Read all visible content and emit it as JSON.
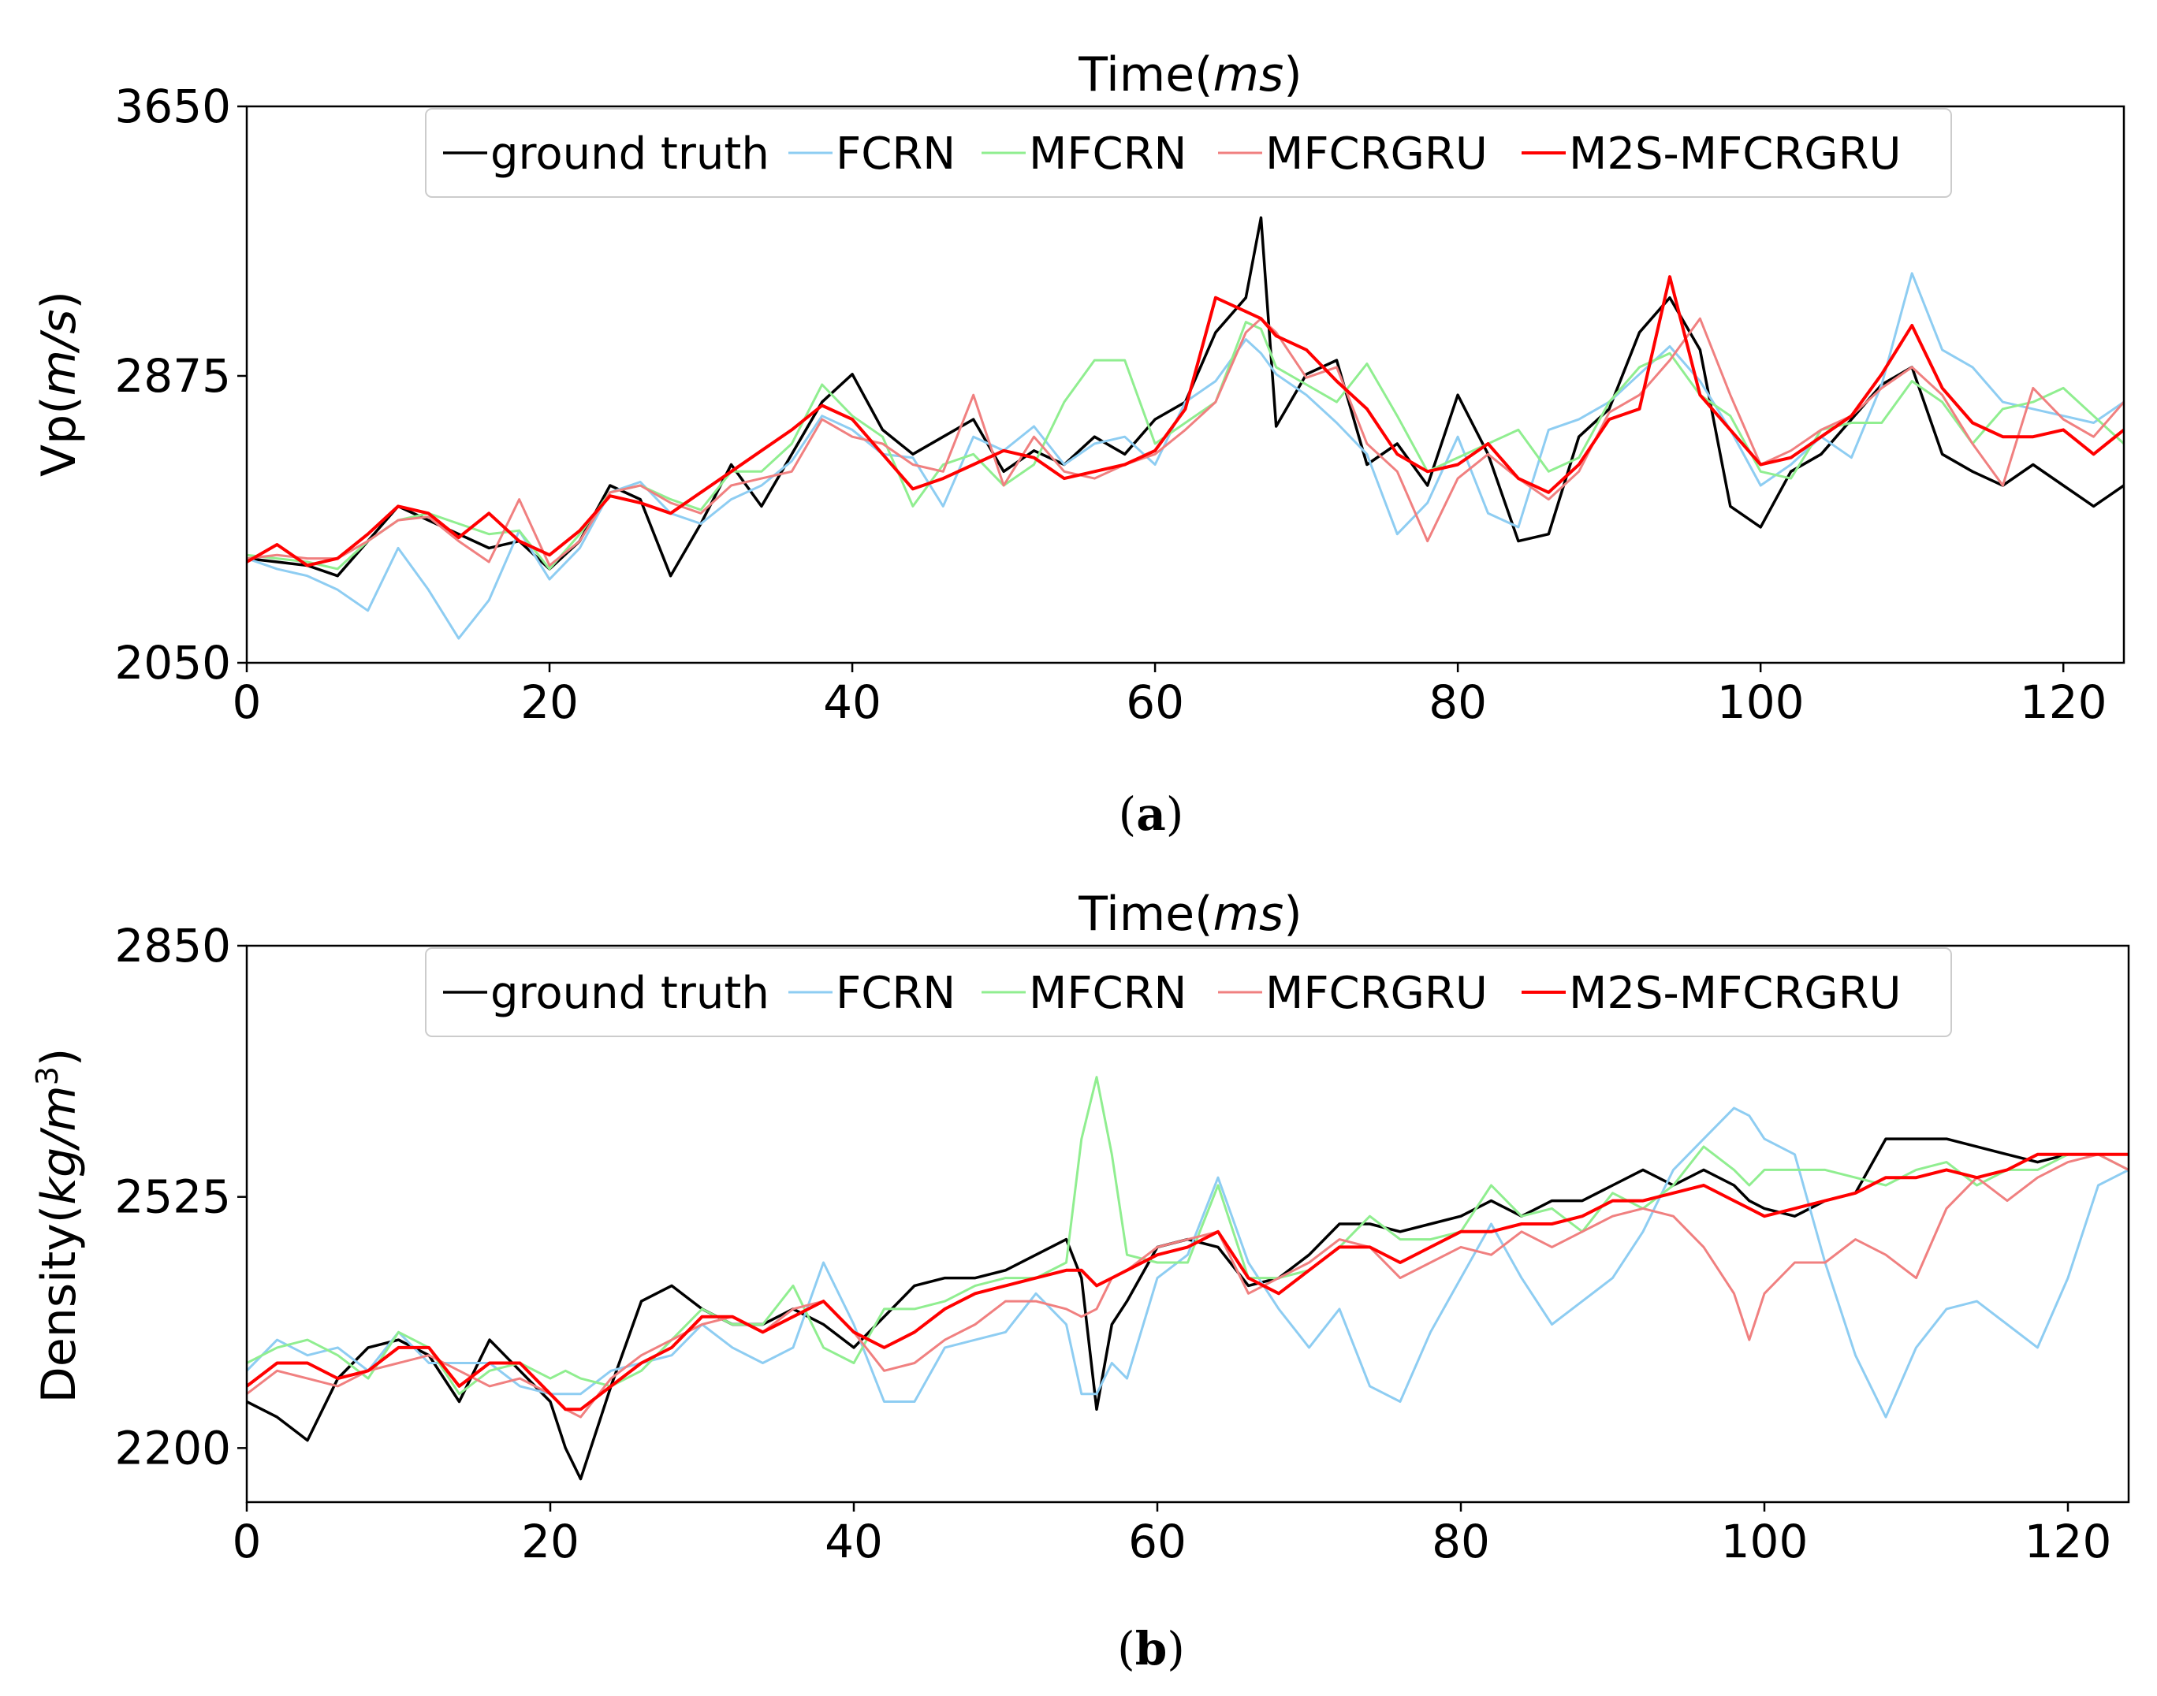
{
  "chart_data": [
    {
      "id": "a",
      "type": "line",
      "title_prefix": "Time(",
      "title_italic": "ms",
      "title_suffix": ")",
      "xlabel": "",
      "ylabel_prefix": "Vp(",
      "ylabel_italic": "m/s",
      "ylabel_suffix": ")",
      "ylabel_sup": "",
      "caption": "a",
      "xlim": [
        0,
        124
      ],
      "ylim": [
        2050,
        3650
      ],
      "xticks": [
        0,
        20,
        40,
        60,
        80,
        100,
        120
      ],
      "xtick_labels": [
        "0",
        "20",
        "40",
        "60",
        "80",
        "100",
        "120"
      ],
      "yticks": [
        2050,
        2875,
        3650
      ],
      "ytick_labels": [
        "2050",
        "2875",
        "3650"
      ],
      "legend": {
        "location": "top-center",
        "entries": [
          "ground truth",
          "FCRN",
          "MFCRN",
          "MFCRGRU",
          "M2S-MFCRGRU"
        ]
      },
      "x_points": [
        0,
        2,
        4,
        6,
        8,
        10,
        12,
        14,
        16,
        18,
        20,
        22,
        24,
        26,
        28,
        30,
        32,
        34,
        36,
        38,
        40,
        42,
        44,
        46,
        48,
        50,
        52,
        54,
        56,
        58,
        60,
        62,
        64,
        66,
        67,
        68,
        70,
        72,
        74,
        76,
        78,
        80,
        82,
        84,
        86,
        88,
        90,
        92,
        94,
        96,
        98,
        100,
        102,
        104,
        106,
        108,
        110,
        112,
        114,
        116,
        118,
        120,
        122,
        124
      ],
      "series": [
        {
          "name": "ground truth",
          "color": "#000000",
          "width": 3.5,
          "values": [
            2350,
            2340,
            2330,
            2300,
            2400,
            2500,
            2460,
            2420,
            2380,
            2400,
            2320,
            2400,
            2560,
            2520,
            2300,
            2450,
            2620,
            2500,
            2650,
            2800,
            2880,
            2720,
            2650,
            2700,
            2750,
            2600,
            2660,
            2620,
            2700,
            2650,
            2750,
            2800,
            3000,
            3100,
            3330,
            2730,
            2880,
            2920,
            2620,
            2680,
            2560,
            2820,
            2650,
            2400,
            2420,
            2700,
            2780,
            3000,
            3100,
            2950,
            2500,
            2440,
            2600,
            2650,
            2750,
            2850,
            2900,
            2650,
            2600,
            2560,
            2620,
            2560,
            2500,
            2560
          ]
        },
        {
          "name": "FCRN",
          "color": "#8ecdf2",
          "width": 3,
          "values": [
            2350,
            2320,
            2300,
            2260,
            2200,
            2380,
            2260,
            2120,
            2230,
            2430,
            2290,
            2380,
            2540,
            2570,
            2480,
            2450,
            2520,
            2560,
            2630,
            2760,
            2720,
            2650,
            2640,
            2500,
            2700,
            2660,
            2730,
            2620,
            2680,
            2700,
            2620,
            2800,
            2860,
            2980,
            2940,
            2880,
            2820,
            2740,
            2650,
            2420,
            2510,
            2700,
            2480,
            2440,
            2720,
            2750,
            2800,
            2880,
            2960,
            2860,
            2720,
            2560,
            2620,
            2700,
            2640,
            2850,
            3170,
            2950,
            2900,
            2800,
            2780,
            2760,
            2740,
            2800
          ]
        },
        {
          "name": "MFCRN",
          "color": "#90ee90",
          "width": 3,
          "values": [
            2360,
            2350,
            2340,
            2320,
            2400,
            2460,
            2480,
            2450,
            2420,
            2430,
            2320,
            2420,
            2540,
            2560,
            2520,
            2490,
            2600,
            2600,
            2680,
            2850,
            2760,
            2700,
            2500,
            2620,
            2650,
            2560,
            2620,
            2800,
            2920,
            2920,
            2680,
            2740,
            2800,
            3030,
            3010,
            2900,
            2850,
            2800,
            2910,
            2760,
            2600,
            2640,
            2680,
            2720,
            2600,
            2640,
            2800,
            2900,
            2940,
            2820,
            2760,
            2600,
            2580,
            2720,
            2740,
            2740,
            2860,
            2800,
            2680,
            2780,
            2800,
            2840,
            2760,
            2680
          ]
        },
        {
          "name": "MFCRGRU",
          "color": "#f08080",
          "width": 3,
          "values": [
            2350,
            2360,
            2350,
            2350,
            2400,
            2460,
            2470,
            2400,
            2340,
            2520,
            2330,
            2400,
            2540,
            2560,
            2510,
            2480,
            2560,
            2580,
            2600,
            2750,
            2700,
            2680,
            2620,
            2600,
            2820,
            2560,
            2700,
            2600,
            2580,
            2620,
            2650,
            2720,
            2800,
            3000,
            3040,
            3000,
            2870,
            2900,
            2680,
            2600,
            2400,
            2580,
            2650,
            2580,
            2520,
            2600,
            2770,
            2820,
            2920,
            3040,
            2820,
            2620,
            2660,
            2720,
            2760,
            2840,
            2900,
            2820,
            2680,
            2560,
            2840,
            2750,
            2700,
            2800
          ]
        },
        {
          "name": "M2S-MFCRGRU",
          "color": "#ff0000",
          "width": 4,
          "values": [
            2340,
            2390,
            2330,
            2350,
            2420,
            2500,
            2480,
            2410,
            2480,
            2400,
            2360,
            2430,
            2530,
            2510,
            2480,
            2540,
            2600,
            2660,
            2720,
            2790,
            2750,
            2650,
            2550,
            2580,
            2620,
            2660,
            2640,
            2580,
            2600,
            2620,
            2660,
            2780,
            3100,
            3060,
            3040,
            2990,
            2950,
            2860,
            2780,
            2650,
            2600,
            2620,
            2680,
            2580,
            2540,
            2620,
            2750,
            2780,
            3160,
            2820,
            2720,
            2620,
            2640,
            2700,
            2760,
            2880,
            3020,
            2840,
            2740,
            2700,
            2700,
            2720,
            2650,
            2720
          ]
        }
      ]
    },
    {
      "id": "b",
      "type": "line",
      "title_prefix": "Time(",
      "title_italic": "ms",
      "title_suffix": ")",
      "xlabel": "",
      "ylabel_prefix": "Density(",
      "ylabel_italic": "kg/m",
      "ylabel_suffix": ")",
      "ylabel_sup": "3",
      "caption": "b",
      "xlim": [
        0,
        124
      ],
      "ylim": [
        2130,
        2850
      ],
      "xticks": [
        0,
        20,
        40,
        60,
        80,
        100,
        120
      ],
      "xtick_labels": [
        "0",
        "20",
        "40",
        "60",
        "80",
        "100",
        "120"
      ],
      "yticks": [
        2200,
        2525,
        2850
      ],
      "ytick_labels": [
        "2200",
        "2525",
        "2850"
      ],
      "legend": {
        "location": "top-center",
        "entries": [
          "ground truth",
          "FCRN",
          "MFCRN",
          "MFCRGRU",
          "M2S-MFCRGRU"
        ]
      },
      "x_points": [
        0,
        2,
        4,
        6,
        8,
        10,
        12,
        14,
        16,
        18,
        20,
        21,
        22,
        24,
        26,
        28,
        30,
        32,
        34,
        36,
        38,
        40,
        42,
        44,
        46,
        48,
        50,
        52,
        54,
        55,
        56,
        57,
        58,
        60,
        62,
        64,
        66,
        68,
        70,
        72,
        74,
        76,
        78,
        80,
        82,
        84,
        86,
        88,
        90,
        92,
        94,
        96,
        98,
        99,
        100,
        102,
        104,
        106,
        108,
        110,
        112,
        114,
        116,
        118,
        120,
        122,
        124
      ],
      "series": [
        {
          "name": "ground truth",
          "color": "#000000",
          "width": 3.5,
          "values": [
            2260,
            2240,
            2210,
            2290,
            2330,
            2340,
            2320,
            2260,
            2340,
            2300,
            2260,
            2200,
            2160,
            2280,
            2390,
            2410,
            2380,
            2360,
            2360,
            2380,
            2360,
            2330,
            2370,
            2410,
            2420,
            2420,
            2430,
            2450,
            2470,
            2420,
            2250,
            2360,
            2390,
            2460,
            2470,
            2460,
            2410,
            2420,
            2450,
            2490,
            2490,
            2480,
            2490,
            2500,
            2520,
            2500,
            2520,
            2520,
            2540,
            2560,
            2540,
            2560,
            2540,
            2520,
            2510,
            2500,
            2520,
            2530,
            2600,
            2600,
            2600,
            2590,
            2580,
            2570,
            2580,
            2580,
            2580
          ]
        },
        {
          "name": "FCRN",
          "color": "#8ecdf2",
          "width": 3,
          "values": [
            2300,
            2340,
            2320,
            2330,
            2300,
            2350,
            2310,
            2310,
            2310,
            2280,
            2270,
            2270,
            2270,
            2300,
            2310,
            2320,
            2360,
            2330,
            2310,
            2330,
            2440,
            2360,
            2260,
            2260,
            2330,
            2340,
            2350,
            2400,
            2360,
            2270,
            2270,
            2310,
            2290,
            2420,
            2450,
            2550,
            2440,
            2380,
            2330,
            2380,
            2280,
            2260,
            2350,
            2420,
            2490,
            2420,
            2360,
            2390,
            2420,
            2480,
            2560,
            2600,
            2640,
            2630,
            2600,
            2580,
            2440,
            2320,
            2240,
            2330,
            2380,
            2390,
            2360,
            2330,
            2420,
            2540,
            2560
          ]
        },
        {
          "name": "MFCRN",
          "color": "#90ee90",
          "width": 3,
          "values": [
            2310,
            2330,
            2340,
            2320,
            2290,
            2350,
            2330,
            2270,
            2300,
            2310,
            2290,
            2300,
            2290,
            2280,
            2300,
            2340,
            2380,
            2360,
            2360,
            2410,
            2330,
            2310,
            2380,
            2380,
            2390,
            2410,
            2420,
            2420,
            2440,
            2600,
            2680,
            2580,
            2450,
            2440,
            2440,
            2540,
            2420,
            2420,
            2430,
            2460,
            2500,
            2470,
            2470,
            2480,
            2540,
            2500,
            2510,
            2480,
            2530,
            2510,
            2540,
            2590,
            2560,
            2540,
            2560,
            2560,
            2560,
            2550,
            2540,
            2560,
            2570,
            2540,
            2560,
            2560,
            2580,
            2580,
            2560
          ]
        },
        {
          "name": "MFCRGRU",
          "color": "#f08080",
          "width": 3,
          "values": [
            2270,
            2300,
            2290,
            2280,
            2300,
            2310,
            2320,
            2300,
            2280,
            2290,
            2270,
            2250,
            2240,
            2290,
            2320,
            2340,
            2360,
            2370,
            2350,
            2380,
            2390,
            2350,
            2300,
            2310,
            2340,
            2360,
            2390,
            2390,
            2380,
            2370,
            2380,
            2420,
            2430,
            2460,
            2470,
            2480,
            2400,
            2420,
            2440,
            2470,
            2460,
            2420,
            2440,
            2460,
            2450,
            2480,
            2460,
            2480,
            2500,
            2510,
            2500,
            2460,
            2400,
            2340,
            2400,
            2440,
            2440,
            2470,
            2450,
            2420,
            2510,
            2550,
            2520,
            2550,
            2570,
            2580,
            2560
          ]
        },
        {
          "name": "M2S-MFCRGRU",
          "color": "#ff0000",
          "width": 4,
          "values": [
            2280,
            2310,
            2310,
            2290,
            2300,
            2330,
            2330,
            2280,
            2310,
            2310,
            2270,
            2250,
            2250,
            2280,
            2310,
            2330,
            2370,
            2370,
            2350,
            2370,
            2390,
            2350,
            2330,
            2350,
            2380,
            2400,
            2410,
            2420,
            2430,
            2430,
            2410,
            2420,
            2430,
            2450,
            2460,
            2480,
            2420,
            2400,
            2430,
            2460,
            2460,
            2440,
            2460,
            2480,
            2480,
            2490,
            2490,
            2500,
            2520,
            2520,
            2530,
            2540,
            2520,
            2510,
            2500,
            2510,
            2520,
            2530,
            2550,
            2550,
            2560,
            2550,
            2560,
            2580,
            2580,
            2580,
            2580
          ]
        }
      ]
    }
  ]
}
